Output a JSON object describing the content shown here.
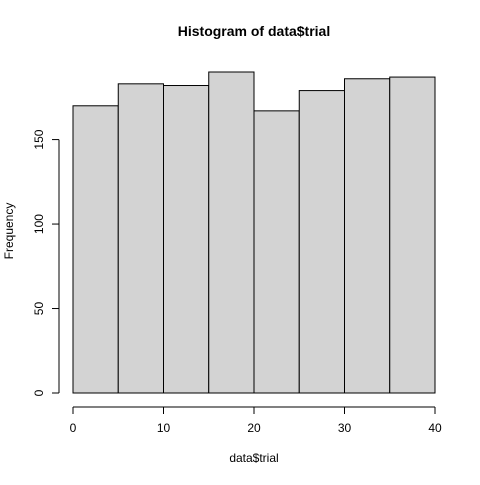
{
  "chart_data": {
    "type": "bar",
    "subtype": "histogram",
    "title": "Histogram of data$trial",
    "xlabel": "data$trial",
    "ylabel": "Frequency",
    "bins": [
      {
        "start": 0,
        "end": 5,
        "count": 170
      },
      {
        "start": 5,
        "end": 10,
        "count": 183
      },
      {
        "start": 10,
        "end": 15,
        "count": 182
      },
      {
        "start": 15,
        "end": 20,
        "count": 190
      },
      {
        "start": 20,
        "end": 25,
        "count": 167
      },
      {
        "start": 25,
        "end": 30,
        "count": 179
      },
      {
        "start": 30,
        "end": 35,
        "count": 186
      },
      {
        "start": 35,
        "end": 40,
        "count": 187
      }
    ],
    "xlim": [
      0,
      40
    ],
    "ylim": [
      0,
      190
    ],
    "x_ticks": [
      0,
      10,
      20,
      30,
      40
    ],
    "y_ticks": [
      0,
      50,
      100,
      150
    ],
    "grid": false,
    "legend": "none",
    "colors": {
      "bar_fill": "#d3d3d3",
      "bar_stroke": "#000000",
      "axis": "#000000",
      "background": "#ffffff"
    }
  }
}
